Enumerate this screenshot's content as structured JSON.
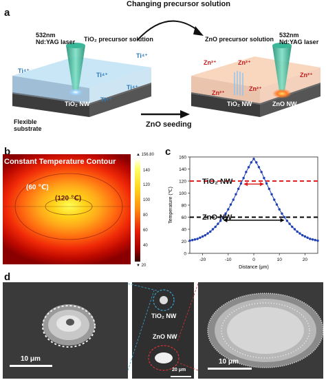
{
  "panel_a": {
    "label": "a",
    "top_caption": "Changing precursor solution",
    "left": {
      "laser_line1": "532nm",
      "laser_line2": "Nd:YAG laser",
      "solution": "TiO₂ precursor solution",
      "ions": [
        "Ti⁴⁺",
        "Ti⁴⁺",
        "Ti⁴⁺",
        "Ti⁴⁺",
        "Ti⁴⁺"
      ],
      "nw_label": "TiO₂ NW",
      "substrate_line1": "Flexible",
      "substrate_line2": "substrate"
    },
    "arrow_caption": "ZnO seeding",
    "right": {
      "solution": "ZnO precursor solution",
      "laser_line1": "532nm",
      "laser_line2": "Nd:YAG laser",
      "ions": [
        "Zn²⁺",
        "Zn²⁺",
        "Zn²⁺",
        "Zn²⁺",
        "Zn²⁺"
      ],
      "nw_left": "TiO₂ NW",
      "nw_right": "ZnO NW"
    }
  },
  "panel_b": {
    "label": "b",
    "title": "Constant Temperature Contour",
    "contour_outer": "(60 ℃)",
    "contour_inner": "(120 ℃)",
    "colorbar_max": "▲ 156.80",
    "colorbar_min": "▼ 20",
    "colorbar_ticks": [
      "140",
      "120",
      "100",
      "80",
      "60",
      "40"
    ]
  },
  "panel_c": {
    "label": "c",
    "tio2_label": "TiO₂ NW",
    "zno_label": "ZnO NW",
    "colors": {
      "series": "#1f3fb5",
      "tio2_line": "#e02020",
      "zno_line": "#000000"
    },
    "chart_data": {
      "type": "scatter",
      "xlabel": "Distance (μm)",
      "ylabel": "Temperature (℃)",
      "xlim": [
        -25,
        25
      ],
      "ylim": [
        0,
        160
      ],
      "xticks": [
        -20,
        -10,
        0,
        10,
        20
      ],
      "yticks": [
        0,
        20,
        40,
        60,
        80,
        100,
        120,
        140,
        160
      ],
      "threshold_tio2": 120,
      "threshold_zno": 60,
      "peak": 156.8,
      "baseline": 20,
      "x": [
        -25,
        -24,
        -23,
        -22,
        -21,
        -20,
        -19,
        -18,
        -17,
        -16,
        -15,
        -14,
        -13,
        -12,
        -11,
        -10,
        -9,
        -8,
        -7,
        -6,
        -5,
        -4,
        -3,
        -2,
        -1,
        0,
        1,
        2,
        3,
        4,
        5,
        6,
        7,
        8,
        9,
        10,
        11,
        12,
        13,
        14,
        15,
        16,
        17,
        18,
        19,
        20,
        21,
        22,
        23,
        24,
        25
      ],
      "y": [
        21,
        22,
        23,
        24,
        26,
        28,
        30,
        33,
        36,
        40,
        44,
        49,
        54,
        60,
        66,
        73,
        81,
        89,
        98,
        107,
        116,
        125,
        135,
        143,
        151,
        156.8,
        151,
        143,
        135,
        125,
        116,
        107,
        98,
        89,
        81,
        73,
        66,
        60,
        54,
        49,
        44,
        40,
        36,
        33,
        30,
        28,
        26,
        24,
        23,
        22,
        21
      ]
    }
  },
  "panel_d": {
    "label": "d",
    "left_scale": "10 μm",
    "mid_tio2": "TiO₂ NW",
    "mid_zno": "ZnO NW",
    "mid_scale": "20 μm",
    "right_scale": "10 μm"
  }
}
